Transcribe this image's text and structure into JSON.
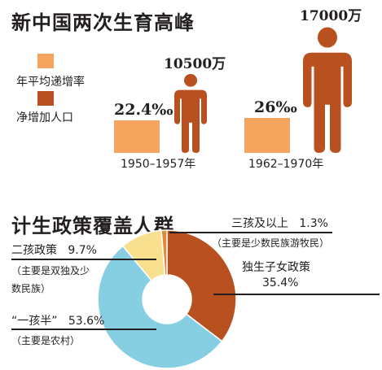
{
  "colors": {
    "rate": "#F4A45D",
    "population": "#B8501F",
    "pie_single_child": "#B8501F",
    "pie_one_and_half": "#86CEE2",
    "pie_two_child": "#F9E08E",
    "pie_three_plus": "#E08A3A"
  },
  "icon": "person-icon",
  "chart_data": [
    {
      "type": "bar",
      "title": "新中国两次生育高峰",
      "legend": [
        "年平均递增率",
        "净增加人口"
      ],
      "legend_placement": "left",
      "categories": [
        "1950–1957年",
        "1962–1970年"
      ],
      "series": [
        {
          "name": "年平均递增率",
          "values": [
            22.4,
            26
          ],
          "labels": [
            "22.4‰",
            "26‰"
          ]
        },
        {
          "name": "净增加人口",
          "values": [
            10500,
            17000
          ],
          "labels": [
            "10500万",
            "17000万"
          ]
        }
      ]
    },
    {
      "type": "pie",
      "title": "计生政策覆盖人群",
      "slices": [
        {
          "name": "独生子女政策",
          "value": 35.4,
          "label": "35.4%",
          "note": ""
        },
        {
          "name": "“一孩半”",
          "value": 53.6,
          "label": "53.6%",
          "note": "（主要是农村）"
        },
        {
          "name": "二孩政策",
          "value": 9.7,
          "label": "9.7%",
          "note_lines": [
            "（主要是双独及少",
            "数民族）"
          ]
        },
        {
          "name": "三孩及以上",
          "value": 1.3,
          "label": "1.3%",
          "note": "（主要是少数民族游牧民）"
        }
      ]
    }
  ]
}
